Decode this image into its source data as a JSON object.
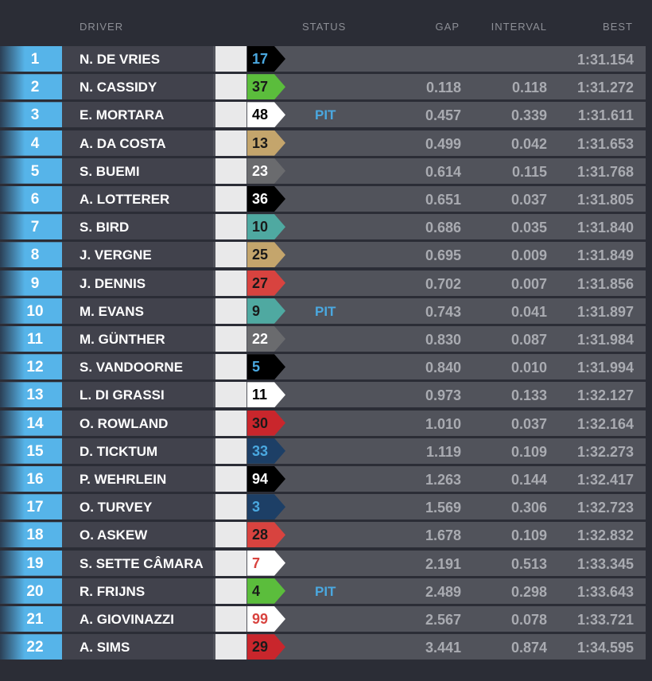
{
  "headers": {
    "driver": "DRIVER",
    "status": "STATUS",
    "gap": "GAP",
    "interval": "INTERVAL",
    "best": "BEST"
  },
  "rows": [
    {
      "pos": "1",
      "name": "N. DE VRIES",
      "team_logo": "MERCEDES-EQ",
      "number": "17",
      "chip": "#000000",
      "numcolor": "#4aa8e0",
      "status": "",
      "gap": "",
      "interval": "",
      "best": "1:31.154"
    },
    {
      "pos": "2",
      "name": "N. CASSIDY",
      "team_logo": "Envision Racing",
      "number": "37",
      "chip": "#5bbd3c",
      "numcolor": "#1a1a1a",
      "status": "",
      "gap": "0.118",
      "interval": "0.118",
      "best": "1:31.272"
    },
    {
      "pos": "3",
      "name": "E. MORTARA",
      "team_logo": "ROKiT VENTURI",
      "number": "48",
      "chip": "#ffffff",
      "numcolor": "#000000",
      "status": "PIT",
      "gap": "0.457",
      "interval": "0.339",
      "best": "1:31.611"
    },
    {
      "pos": "4",
      "name": "A. DA COSTA",
      "team_logo": "DS",
      "number": "13",
      "chip": "#c4a56c",
      "numcolor": "#1a1a1a",
      "status": "",
      "gap": "0.499",
      "interval": "0.042",
      "best": "1:31.653"
    },
    {
      "pos": "5",
      "name": "S. BUEMI",
      "team_logo": "NISSAN",
      "number": "23",
      "chip": "#6a6b6e",
      "numcolor": "#ffffff",
      "status": "",
      "gap": "0.614",
      "interval": "0.115",
      "best": "1:31.768"
    },
    {
      "pos": "6",
      "name": "A. LOTTERER",
      "team_logo": "TAG Heuer PORSCHE",
      "number": "36",
      "chip": "#000000",
      "numcolor": "#ffffff",
      "status": "",
      "gap": "0.651",
      "interval": "0.037",
      "best": "1:31.805"
    },
    {
      "pos": "7",
      "name": "S. BIRD",
      "team_logo": "JAGUAR TCS",
      "number": "10",
      "chip": "#4fa9a1",
      "numcolor": "#1a1a1a",
      "status": "",
      "gap": "0.686",
      "interval": "0.035",
      "best": "1:31.840"
    },
    {
      "pos": "8",
      "name": "J. VERGNE",
      "team_logo": "DS",
      "number": "25",
      "chip": "#c4a56c",
      "numcolor": "#1a1a1a",
      "status": "",
      "gap": "0.695",
      "interval": "0.009",
      "best": "1:31.849"
    },
    {
      "pos": "9",
      "name": "J. DENNIS",
      "team_logo": "AVALANCHE ANDRETTI",
      "number": "27",
      "chip": "#d8433f",
      "numcolor": "#1a1a1a",
      "status": "",
      "gap": "0.702",
      "interval": "0.007",
      "best": "1:31.856"
    },
    {
      "pos": "10",
      "name": "M. EVANS",
      "team_logo": "JAGUAR TCS",
      "number": "9",
      "chip": "#4fa9a1",
      "numcolor": "#1a1a1a",
      "status": "PIT",
      "gap": "0.743",
      "interval": "0.041",
      "best": "1:31.897"
    },
    {
      "pos": "11",
      "name": "M. GÜNTHER",
      "team_logo": "NISSAN",
      "number": "22",
      "chip": "#6a6b6e",
      "numcolor": "#ffffff",
      "status": "",
      "gap": "0.830",
      "interval": "0.087",
      "best": "1:31.984"
    },
    {
      "pos": "12",
      "name": "S. VANDOORNE",
      "team_logo": "MERCEDES-EQ",
      "number": "5",
      "chip": "#000000",
      "numcolor": "#4aa8e0",
      "status": "",
      "gap": "0.840",
      "interval": "0.010",
      "best": "1:31.994"
    },
    {
      "pos": "13",
      "name": "L. DI GRASSI",
      "team_logo": "ROKiT VENTURI",
      "number": "11",
      "chip": "#ffffff",
      "numcolor": "#000000",
      "status": "",
      "gap": "0.973",
      "interval": "0.133",
      "best": "1:32.127"
    },
    {
      "pos": "14",
      "name": "O. ROWLAND",
      "team_logo": "MAHINDRA",
      "number": "30",
      "chip": "#c9262c",
      "numcolor": "#1a1a1a",
      "status": "",
      "gap": "1.010",
      "interval": "0.037",
      "best": "1:32.164"
    },
    {
      "pos": "15",
      "name": "D. TICKTUM",
      "team_logo": "NIO 333",
      "number": "33",
      "chip": "#1d3f66",
      "numcolor": "#4aa8e0",
      "status": "",
      "gap": "1.119",
      "interval": "0.109",
      "best": "1:32.273"
    },
    {
      "pos": "16",
      "name": "P. WEHRLEIN",
      "team_logo": "TAG Heuer PORSCHE",
      "number": "94",
      "chip": "#000000",
      "numcolor": "#ffffff",
      "status": "",
      "gap": "1.263",
      "interval": "0.144",
      "best": "1:32.417"
    },
    {
      "pos": "17",
      "name": "O. TURVEY",
      "team_logo": "NIO 333",
      "number": "3",
      "chip": "#1d3f66",
      "numcolor": "#4aa8e0",
      "status": "",
      "gap": "1.569",
      "interval": "0.306",
      "best": "1:32.723"
    },
    {
      "pos": "18",
      "name": "O. ASKEW",
      "team_logo": "AVALANCHE ANDRETTI",
      "number": "28",
      "chip": "#d8433f",
      "numcolor": "#1a1a1a",
      "status": "",
      "gap": "1.678",
      "interval": "0.109",
      "best": "1:32.832"
    },
    {
      "pos": "19",
      "name": "S. SETTE CÂMARA",
      "team_logo": "DRAGON PENSKE AUTOSPORT",
      "number": "7",
      "chip": "#ffffff",
      "numcolor": "#d8433f",
      "status": "",
      "gap": "2.191",
      "interval": "0.513",
      "best": "1:33.345"
    },
    {
      "pos": "20",
      "name": "R. FRIJNS",
      "team_logo": "Envision Racing",
      "number": "4",
      "chip": "#5bbd3c",
      "numcolor": "#1a1a1a",
      "status": "PIT",
      "gap": "2.489",
      "interval": "0.298",
      "best": "1:33.643"
    },
    {
      "pos": "21",
      "name": "A. GIOVINAZZI",
      "team_logo": "DRAGON PENSKE AUTOSPORT",
      "number": "99",
      "chip": "#ffffff",
      "numcolor": "#d8433f",
      "status": "",
      "gap": "2.567",
      "interval": "0.078",
      "best": "1:33.721"
    },
    {
      "pos": "22",
      "name": "A. SIMS",
      "team_logo": "MAHINDRA",
      "number": "29",
      "chip": "#c9262c",
      "numcolor": "#1a1a1a",
      "status": "",
      "gap": "3.441",
      "interval": "0.874",
      "best": "1:34.595"
    }
  ]
}
